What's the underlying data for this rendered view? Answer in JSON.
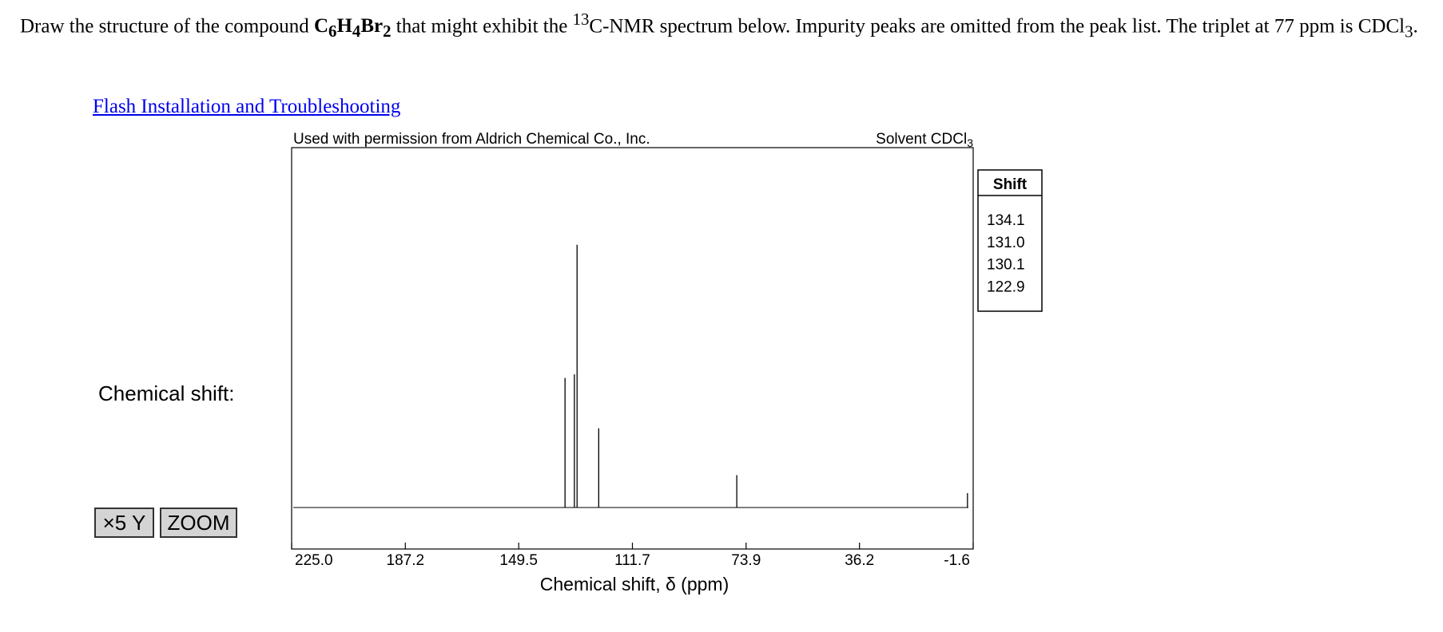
{
  "question": {
    "text_1": "Draw the structure of the compound ",
    "formula": [
      "C",
      "6",
      "H",
      "4",
      "Br",
      "2"
    ],
    "text_2": " that might exhibit the ",
    "isotope": "13",
    "text_3": "C-NMR spectrum below. Impurity peaks are omitted from the peak list. The triplet at 77 ppm is CDCl",
    "subscript": "3",
    "text_4": "."
  },
  "link": "Flash Installation and Troubleshooting",
  "side_label": "Chemical shift:",
  "buttons": [
    "×5 Y",
    "ZOOM"
  ],
  "chart_data": {
    "type": "spectrum",
    "header_left": "Used with permission from Aldrich Chemical Co., Inc.",
    "header_right": {
      "text": "Solvent CDCl",
      "subscript": "3"
    },
    "x_label": "Chemical shift, δ (ppm)",
    "x": [
      134.1,
      131.0,
      130.1,
      122.9,
      77,
      0.3
    ],
    "values": [
      36,
      37,
      73,
      22,
      9,
      4
    ],
    "xlim": [
      225,
      -1.6
    ],
    "ylim": [
      0,
      100
    ],
    "xticks": [
      {
        "value": 225,
        "label": "225.0"
      },
      {
        "value": 187.2,
        "label": "187.2"
      },
      {
        "value": 149.5,
        "label": "149.5"
      },
      {
        "value": 111.7,
        "label": "111.7"
      },
      {
        "value": 73.9,
        "label": "73.9"
      },
      {
        "value": 36.2,
        "label": "36.2"
      },
      {
        "value": -1.6,
        "label": "-1.6"
      }
    ],
    "color": "#000000",
    "shift_table": {
      "header": "Shift",
      "rows": [
        "134.1",
        "131.0",
        "130.1",
        "122.9"
      ]
    }
  }
}
